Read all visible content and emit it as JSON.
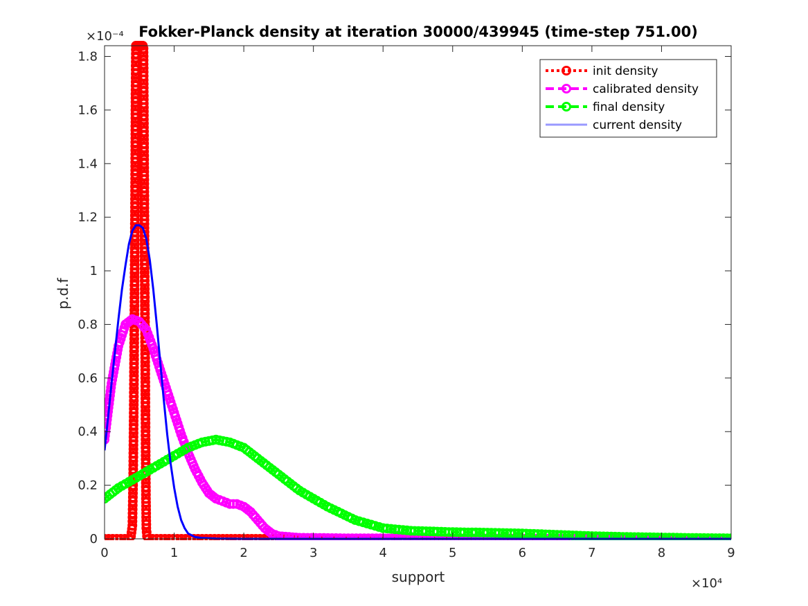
{
  "chart_data": {
    "type": "line",
    "title": "Fokker-Planck density at iteration 30000/439945 (time-step 751.00)",
    "xlabel": "support",
    "ylabel": "p.d.f",
    "x_exponent_label": "×10⁴",
    "y_exponent_label": "×10⁻⁴",
    "xlim": [
      0,
      90000
    ],
    "ylim": [
      0,
      0.000184
    ],
    "xticks": [
      0,
      10000,
      20000,
      30000,
      40000,
      50000,
      60000,
      70000,
      80000,
      90000
    ],
    "xtick_labels": [
      "0",
      "1",
      "2",
      "3",
      "4",
      "5",
      "6",
      "7",
      "8",
      "9"
    ],
    "yticks": [
      0,
      2e-05,
      4e-05,
      6e-05,
      8e-05,
      0.0001,
      0.00012,
      0.00014,
      0.00016,
      0.00018
    ],
    "ytick_labels": [
      "0",
      "0.2",
      "0.4",
      "0.6",
      "0.8",
      "1",
      "1.2",
      "1.4",
      "1.6",
      "1.8"
    ],
    "legend_position": "top-right",
    "series": [
      {
        "name": "init density",
        "color": "#ff0000",
        "style": "dotted",
        "marker": "circle",
        "points": [
          [
            0,
            0
          ],
          [
            3500,
            0
          ],
          [
            3800,
            1e-06
          ],
          [
            4000,
            5e-06
          ],
          [
            4100,
            2e-05
          ],
          [
            4200,
            5e-05
          ],
          [
            4300,
            9e-05
          ],
          [
            4400,
            0.000136
          ],
          [
            4450,
            0.000166
          ],
          [
            4500,
            0.000184
          ],
          [
            4550,
            0.000184
          ],
          [
            4600,
            0.000184
          ],
          [
            4700,
            0.000184
          ],
          [
            4800,
            0.000184
          ],
          [
            4900,
            0.000184
          ],
          [
            5000,
            0.000184
          ],
          [
            5100,
            0.000184
          ],
          [
            5200,
            0.000184
          ],
          [
            5300,
            0.000184
          ],
          [
            5400,
            0.000184
          ],
          [
            5500,
            0.000184
          ],
          [
            5600,
            0.000183
          ],
          [
            5650,
            0.000158
          ],
          [
            5700,
            0.000137
          ],
          [
            5750,
            0.000104
          ],
          [
            5800,
            8.4e-05
          ],
          [
            5850,
            6e-05
          ],
          [
            5900,
            3.4e-05
          ],
          [
            5950,
            1.5e-05
          ],
          [
            6000,
            4e-06
          ],
          [
            6100,
            1e-06
          ],
          [
            6300,
            0
          ],
          [
            90000,
            0
          ]
        ]
      },
      {
        "name": "calibrated density",
        "color": "#ff00ff",
        "style": "dashed",
        "marker": "circle",
        "points": [
          [
            0,
            3.7e-05
          ],
          [
            1000,
            5.8e-05
          ],
          [
            2000,
            7.2e-05
          ],
          [
            3000,
            8e-05
          ],
          [
            4000,
            8.2e-05
          ],
          [
            5000,
            8.1e-05
          ],
          [
            6000,
            7.8e-05
          ],
          [
            7000,
            7.1e-05
          ],
          [
            8000,
            6.3e-05
          ],
          [
            9000,
            5.5e-05
          ],
          [
            10000,
            4.7e-05
          ],
          [
            11000,
            3.9e-05
          ],
          [
            12000,
            3.2e-05
          ],
          [
            13000,
            2.6e-05
          ],
          [
            14000,
            2.1e-05
          ],
          [
            15000,
            1.7e-05
          ],
          [
            16000,
            1.5e-05
          ],
          [
            17000,
            1.4e-05
          ],
          [
            18000,
            1.3e-05
          ],
          [
            19000,
            1.3e-05
          ],
          [
            20000,
            1.2e-05
          ],
          [
            21000,
            1e-05
          ],
          [
            22000,
            7e-06
          ],
          [
            23000,
            4e-06
          ],
          [
            24000,
            2e-06
          ],
          [
            25000,
            1e-06
          ],
          [
            28000,
            4e-07
          ],
          [
            35000,
            2e-07
          ],
          [
            50000,
            1e-07
          ],
          [
            70000,
            0
          ],
          [
            90000,
            0
          ]
        ]
      },
      {
        "name": "final density",
        "color": "#00ff00",
        "style": "dashed",
        "marker": "circle",
        "points": [
          [
            0,
            1.5e-05
          ],
          [
            2000,
            1.9e-05
          ],
          [
            4000,
            2.2e-05
          ],
          [
            6000,
            2.5e-05
          ],
          [
            8000,
            2.8e-05
          ],
          [
            10000,
            3.1e-05
          ],
          [
            12000,
            3.4e-05
          ],
          [
            14000,
            3.6e-05
          ],
          [
            16000,
            3.7e-05
          ],
          [
            18000,
            3.6e-05
          ],
          [
            20000,
            3.4e-05
          ],
          [
            22000,
            3e-05
          ],
          [
            25000,
            2.4e-05
          ],
          [
            28000,
            1.8e-05
          ],
          [
            32000,
            1.2e-05
          ],
          [
            36000,
            7e-06
          ],
          [
            40000,
            4e-06
          ],
          [
            44000,
            3e-06
          ],
          [
            50000,
            2.5e-06
          ],
          [
            55000,
            2.3e-06
          ],
          [
            60000,
            2e-06
          ],
          [
            65000,
            1.5e-06
          ],
          [
            70000,
            1e-06
          ],
          [
            75000,
            7e-07
          ],
          [
            80000,
            5e-07
          ],
          [
            85000,
            3e-07
          ],
          [
            90000,
            2e-07
          ]
        ]
      },
      {
        "name": "current density",
        "color": "#0000ff",
        "style": "solid",
        "marker": "none",
        "legend_color": "#9999ff",
        "legend_text_color": "#a6a6a6",
        "points": [
          [
            0,
            3.3e-05
          ],
          [
            500,
            4.5e-05
          ],
          [
            1000,
            5.8e-05
          ],
          [
            1500,
            7e-05
          ],
          [
            2000,
            8.2e-05
          ],
          [
            2500,
            9.3e-05
          ],
          [
            3000,
            0.000102
          ],
          [
            3500,
            0.00011
          ],
          [
            4000,
            0.000115
          ],
          [
            4500,
            0.000117
          ],
          [
            5000,
            0.000117
          ],
          [
            5500,
            0.000116
          ],
          [
            6000,
            0.000112
          ],
          [
            6500,
            0.000104
          ],
          [
            7000,
            9.3e-05
          ],
          [
            7500,
            8e-05
          ],
          [
            8000,
            6.6e-05
          ],
          [
            8500,
            5.2e-05
          ],
          [
            9000,
            3.9e-05
          ],
          [
            9500,
            2.8e-05
          ],
          [
            10000,
            1.9e-05
          ],
          [
            10500,
            1.2e-05
          ],
          [
            11000,
            7e-06
          ],
          [
            11500,
            4e-06
          ],
          [
            12000,
            2e-06
          ],
          [
            13000,
            7e-07
          ],
          [
            14000,
            3e-07
          ],
          [
            16000,
            1e-07
          ],
          [
            20000,
            0
          ],
          [
            90000,
            0
          ]
        ]
      }
    ]
  }
}
